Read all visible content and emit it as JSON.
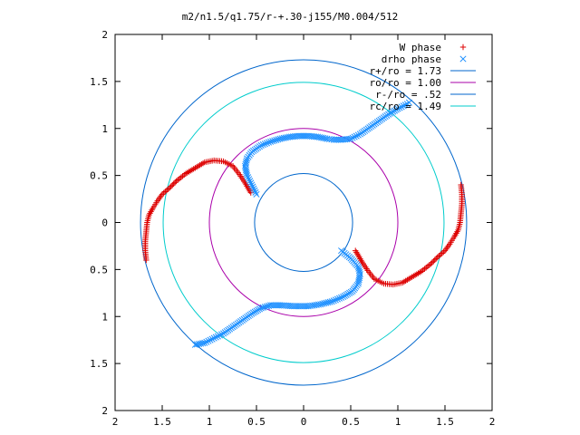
{
  "chart_data": {
    "type": "scatter",
    "title": "m2/n1.5/q1.75/r-+.30-j155/M0.004/512",
    "xlabel": "",
    "ylabel": "",
    "xlim": [
      -2,
      2
    ],
    "ylim": [
      -2,
      2
    ],
    "grid": false,
    "legend_position": "top-right",
    "x_ticks": [
      -2,
      -1.5,
      -1,
      -0.5,
      0,
      0.5,
      1,
      1.5,
      2
    ],
    "x_tick_labels": [
      "2",
      "1.5",
      "1",
      "0.5",
      "0",
      "0.5",
      "1",
      "1.5",
      "2"
    ],
    "y_ticks": [
      2,
      1.5,
      1,
      0.5,
      0,
      -0.5,
      -1,
      -1.5,
      -2
    ],
    "y_tick_labels": [
      "2",
      "1.5",
      "1",
      "0.5",
      "0",
      "0.5",
      "1",
      "1.5",
      "2"
    ],
    "circles": [
      {
        "name": "r+/ro = 1.73",
        "r": 1.73,
        "color": "#0066cc"
      },
      {
        "name": "ro/ro = 1.00",
        "r": 1.0,
        "color": "#aa00aa"
      },
      {
        "name": "r-/ro = .52",
        "r": 0.52,
        "color": "#0066cc"
      },
      {
        "name": "rc/ro = 1.49",
        "r": 1.49,
        "color": "#00cccc"
      }
    ],
    "series": [
      {
        "name": "W phase",
        "marker": "+",
        "color": "#dd0000",
        "points": [
          [
            -1.67,
            -0.4
          ],
          [
            -1.68,
            -0.3
          ],
          [
            -1.68,
            -0.2
          ],
          [
            -1.67,
            -0.1
          ],
          [
            -1.66,
            0.0
          ],
          [
            -1.64,
            0.08
          ],
          [
            -1.6,
            0.15
          ],
          [
            -1.55,
            0.23
          ],
          [
            -1.5,
            0.3
          ],
          [
            -1.42,
            0.37
          ],
          [
            -1.35,
            0.44
          ],
          [
            -1.25,
            0.52
          ],
          [
            -1.15,
            0.58
          ],
          [
            -1.05,
            0.64
          ],
          [
            -0.95,
            0.66
          ],
          [
            -0.85,
            0.65
          ],
          [
            -0.75,
            0.6
          ],
          [
            -0.68,
            0.51
          ],
          [
            -0.62,
            0.42
          ],
          [
            -0.58,
            0.35
          ],
          [
            -0.55,
            0.3
          ],
          [
            1.67,
            0.4
          ],
          [
            1.68,
            0.3
          ],
          [
            1.68,
            0.2
          ],
          [
            1.67,
            0.1
          ],
          [
            1.66,
            0.0
          ],
          [
            1.64,
            -0.08
          ],
          [
            1.6,
            -0.15
          ],
          [
            1.55,
            -0.23
          ],
          [
            1.5,
            -0.3
          ],
          [
            1.42,
            -0.37
          ],
          [
            1.35,
            -0.44
          ],
          [
            1.25,
            -0.52
          ],
          [
            1.15,
            -0.58
          ],
          [
            1.05,
            -0.64
          ],
          [
            0.95,
            -0.66
          ],
          [
            0.85,
            -0.65
          ],
          [
            0.75,
            -0.6
          ],
          [
            0.68,
            -0.51
          ],
          [
            0.62,
            -0.42
          ],
          [
            0.58,
            -0.35
          ],
          [
            0.55,
            -0.3
          ]
        ]
      },
      {
        "name": "drho phase",
        "marker": "x",
        "color": "#1e90ff",
        "points": [
          [
            -0.5,
            0.3
          ],
          [
            -0.55,
            0.4
          ],
          [
            -0.6,
            0.5
          ],
          [
            -0.62,
            0.6
          ],
          [
            -0.6,
            0.68
          ],
          [
            -0.55,
            0.75
          ],
          [
            -0.45,
            0.82
          ],
          [
            -0.35,
            0.86
          ],
          [
            -0.25,
            0.89
          ],
          [
            -0.15,
            0.91
          ],
          [
            -0.05,
            0.92
          ],
          [
            0.05,
            0.92
          ],
          [
            0.15,
            0.91
          ],
          [
            0.25,
            0.89
          ],
          [
            0.32,
            0.88
          ],
          [
            0.4,
            0.88
          ],
          [
            0.5,
            0.89
          ],
          [
            0.6,
            0.94
          ],
          [
            0.7,
            1.01
          ],
          [
            0.8,
            1.08
          ],
          [
            0.9,
            1.15
          ],
          [
            1.0,
            1.21
          ],
          [
            1.1,
            1.26
          ],
          [
            1.14,
            1.29
          ],
          [
            0.4,
            -0.3
          ],
          [
            0.5,
            -0.38
          ],
          [
            0.58,
            -0.47
          ],
          [
            0.6,
            -0.55
          ],
          [
            0.58,
            -0.65
          ],
          [
            0.52,
            -0.73
          ],
          [
            0.42,
            -0.79
          ],
          [
            0.3,
            -0.84
          ],
          [
            0.18,
            -0.87
          ],
          [
            0.05,
            -0.89
          ],
          [
            -0.1,
            -0.89
          ],
          [
            -0.25,
            -0.88
          ],
          [
            -0.35,
            -0.88
          ],
          [
            -0.45,
            -0.91
          ],
          [
            -0.55,
            -0.97
          ],
          [
            -0.65,
            -1.04
          ],
          [
            -0.75,
            -1.11
          ],
          [
            -0.85,
            -1.18
          ],
          [
            -0.95,
            -1.23
          ],
          [
            -1.05,
            -1.28
          ],
          [
            -1.15,
            -1.3
          ]
        ]
      }
    ]
  }
}
